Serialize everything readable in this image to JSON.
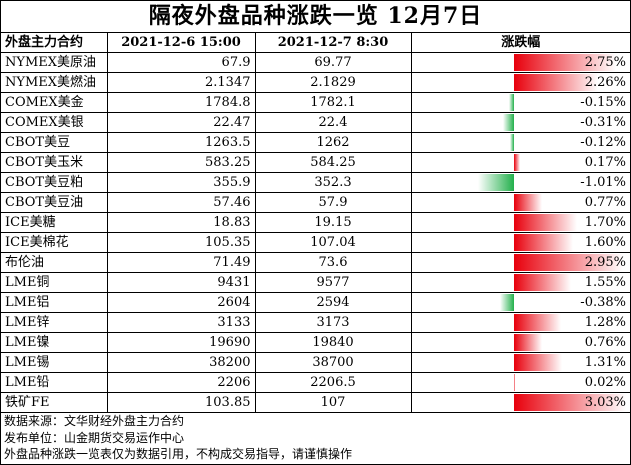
{
  "title": "隔夜外盘品种涨跌一览 12月7日",
  "headers": [
    "外盘主力合约",
    "2021-12-6 15:00",
    "2021-12-7 8:30",
    "涨跌幅"
  ],
  "chart_data": {
    "type": "table",
    "columns": [
      "外盘主力合约",
      "2021-12-6 15:00",
      "2021-12-7 8:30",
      "涨跌幅"
    ],
    "rows": [
      {
        "name": "NYMEX美原油",
        "prev": "67.9",
        "curr": "69.77",
        "pct": "2.75%",
        "value": 2.75
      },
      {
        "name": "NYMEX美燃油",
        "prev": "2.1347",
        "curr": "2.1829",
        "pct": "2.26%",
        "value": 2.26
      },
      {
        "name": "COMEX美金",
        "prev": "1784.8",
        "curr": "1782.1",
        "pct": "-0.15%",
        "value": -0.15
      },
      {
        "name": "COMEX美银",
        "prev": "22.47",
        "curr": "22.4",
        "pct": "-0.31%",
        "value": -0.31
      },
      {
        "name": "CBOT美豆",
        "prev": "1263.5",
        "curr": "1262",
        "pct": "-0.12%",
        "value": -0.12
      },
      {
        "name": "CBOT美玉米",
        "prev": "583.25",
        "curr": "584.25",
        "pct": "0.17%",
        "value": 0.17
      },
      {
        "name": "CBOT美豆粕",
        "prev": "355.9",
        "curr": "352.3",
        "pct": "-1.01%",
        "value": -1.01
      },
      {
        "name": "CBOT美豆油",
        "prev": "57.46",
        "curr": "57.9",
        "pct": "0.77%",
        "value": 0.77
      },
      {
        "name": "ICE美糖",
        "prev": "18.83",
        "curr": "19.15",
        "pct": "1.70%",
        "value": 1.7
      },
      {
        "name": "ICE美棉花",
        "prev": "105.35",
        "curr": "107.04",
        "pct": "1.60%",
        "value": 1.6
      },
      {
        "name": "布伦油",
        "prev": "71.49",
        "curr": "73.6",
        "pct": "2.95%",
        "value": 2.95
      },
      {
        "name": "LME铜",
        "prev": "9431",
        "curr": "9577",
        "pct": "1.55%",
        "value": 1.55
      },
      {
        "name": "LME铝",
        "prev": "2604",
        "curr": "2594",
        "pct": "-0.38%",
        "value": -0.38
      },
      {
        "name": "LME锌",
        "prev": "3133",
        "curr": "3173",
        "pct": "1.28%",
        "value": 1.28
      },
      {
        "name": "LME镍",
        "prev": "19690",
        "curr": "19840",
        "pct": "0.76%",
        "value": 0.76
      },
      {
        "name": "LME锡",
        "prev": "38200",
        "curr": "38700",
        "pct": "1.31%",
        "value": 1.31
      },
      {
        "name": "LME铅",
        "prev": "2206",
        "curr": "2206.5",
        "pct": "0.02%",
        "value": 0.02
      },
      {
        "name": "铁矿FE",
        "prev": "103.85",
        "curr": "107",
        "pct": "3.03%",
        "value": 3.03
      }
    ]
  },
  "colors": {
    "up": "#e8000c",
    "down": "#23b04c"
  },
  "notes": [
    "数据来源：文华财经外盘主力合约",
    "发布单位：山金期货交易运作中心",
    "外盘品种涨跌一览表仅为数据引用，不构成交易指导，请谨慎操作"
  ]
}
